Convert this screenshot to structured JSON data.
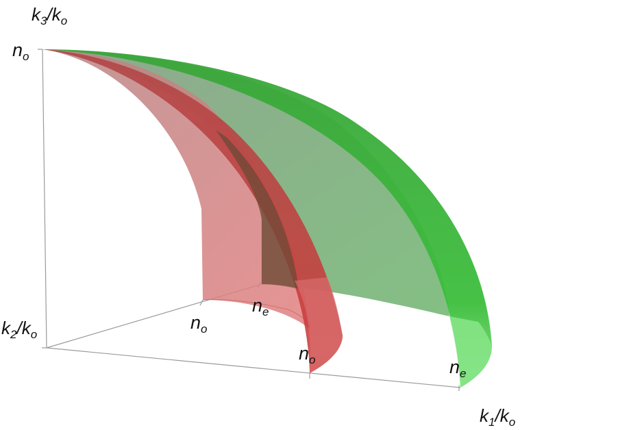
{
  "axes": {
    "vertical": {
      "label": "k",
      "sub": "3",
      "over": "/k",
      "over_sub": "o"
    },
    "depth": {
      "label": "k",
      "sub": "2",
      "over": "/k",
      "over_sub": "o"
    },
    "horizontal": {
      "label": "k",
      "sub": "1",
      "over": "/k",
      "over_sub": "o"
    }
  },
  "ticks": {
    "vertical_top": {
      "main": "n",
      "sub": "o"
    },
    "depth_no": {
      "main": "n",
      "sub": "o"
    },
    "depth_ne": {
      "main": "n",
      "sub": "e"
    },
    "horizontal_no": {
      "main": "n",
      "sub": "o"
    },
    "horizontal_ne": {
      "main": "n",
      "sub": "e"
    }
  },
  "colors": {
    "ordinary_surface": "#c0342f",
    "extraordinary_surface": "#2fa12f",
    "axis": "#9a9a9a"
  }
}
